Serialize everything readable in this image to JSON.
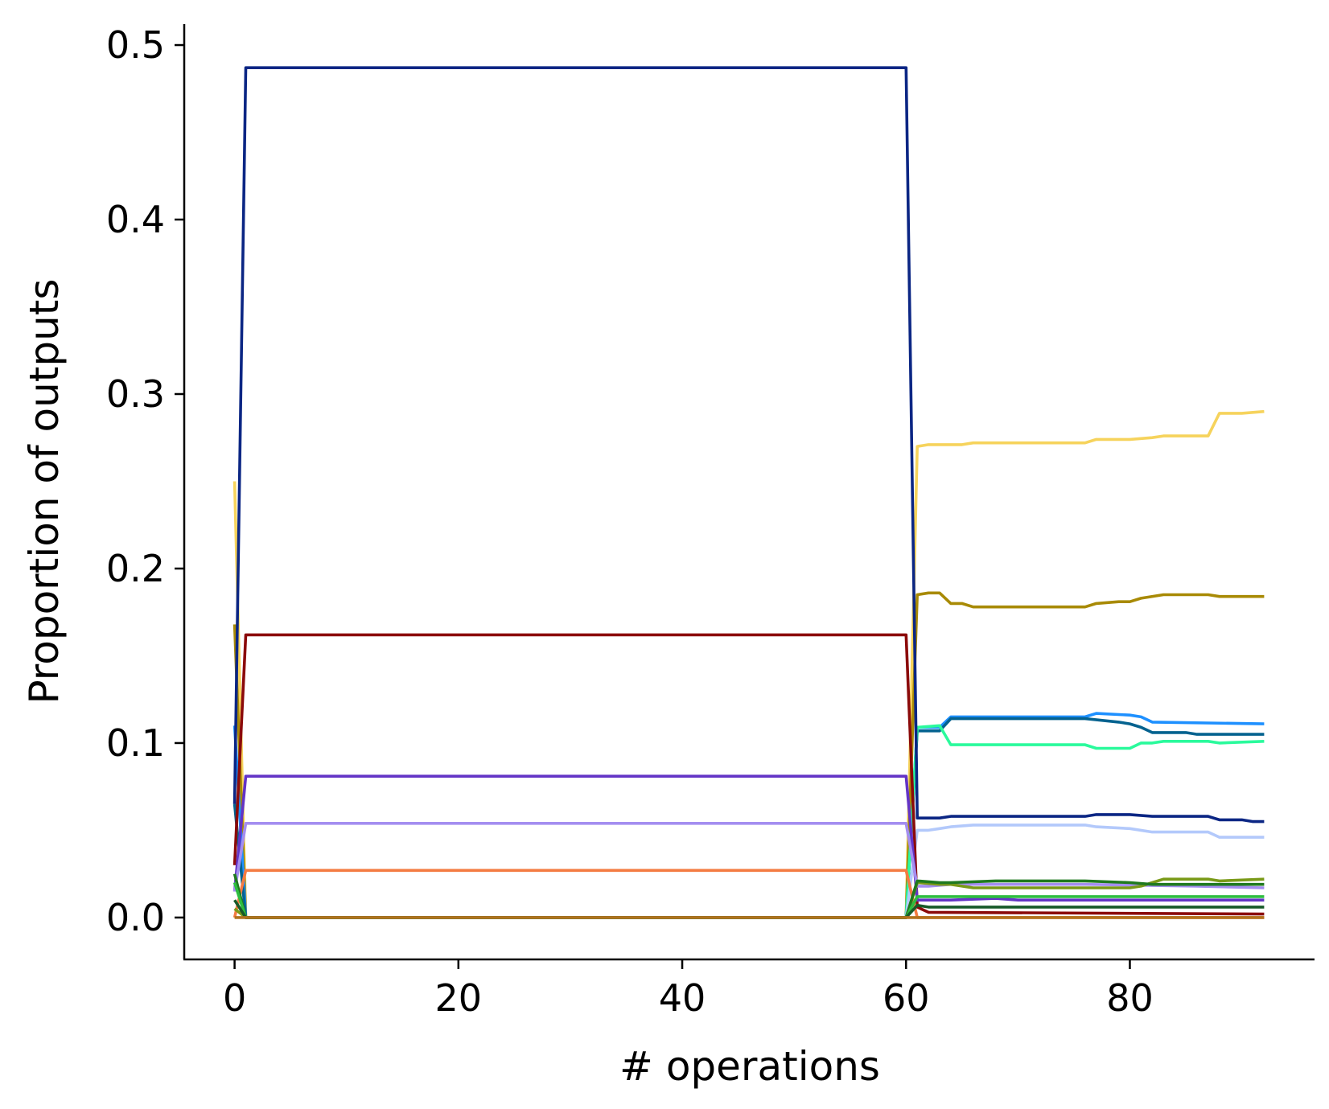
{
  "chart_data": {
    "type": "line",
    "title": "",
    "xlabel": "# operations",
    "ylabel": "Proportion of outputs",
    "xlim": [
      -4.5,
      96.5
    ],
    "ylim": [
      -0.024,
      0.512
    ],
    "xticks": [
      0,
      20,
      40,
      60,
      80
    ],
    "xtick_labels": [
      "0",
      "20",
      "40",
      "60",
      "80"
    ],
    "yticks": [
      0.0,
      0.1,
      0.2,
      0.3,
      0.4,
      0.5
    ],
    "ytick_labels": [
      "0.0",
      "0.1",
      "0.2",
      "0.3",
      "0.4",
      "0.5"
    ],
    "grid": false,
    "legend": "none",
    "series": [
      {
        "color": "#f6d35c",
        "x": [
          0,
          1,
          60,
          61,
          62,
          63,
          64,
          65,
          66,
          70,
          76,
          77,
          80,
          82,
          83,
          87,
          88,
          90,
          92
        ],
        "y": [
          0.25,
          0.0,
          0.0,
          0.27,
          0.271,
          0.271,
          0.271,
          0.271,
          0.272,
          0.272,
          0.272,
          0.274,
          0.274,
          0.275,
          0.276,
          0.276,
          0.289,
          0.289,
          0.29
        ]
      },
      {
        "color": "#a88a05",
        "x": [
          0,
          1,
          60,
          61,
          62,
          63,
          64,
          65,
          66,
          70,
          76,
          77,
          79,
          80,
          81,
          83,
          87,
          88,
          92
        ],
        "y": [
          0.168,
          0.0,
          0.0,
          0.185,
          0.186,
          0.186,
          0.18,
          0.18,
          0.178,
          0.178,
          0.178,
          0.18,
          0.181,
          0.181,
          0.183,
          0.185,
          0.185,
          0.184,
          0.184
        ]
      },
      {
        "color": "#1e90ff",
        "x": [
          0,
          1,
          60,
          61,
          63,
          64,
          67,
          76,
          77,
          80,
          81,
          82,
          92
        ],
        "y": [
          0.11,
          0.0,
          0.0,
          0.109,
          0.109,
          0.115,
          0.115,
          0.115,
          0.117,
          0.116,
          0.115,
          0.112,
          0.111
        ]
      },
      {
        "color": "#04628f",
        "x": [
          0,
          1,
          60,
          61,
          62,
          63,
          64,
          65,
          76,
          79,
          80,
          81,
          82,
          85,
          86,
          92
        ],
        "y": [
          0.065,
          0.0,
          0.0,
          0.107,
          0.107,
          0.107,
          0.114,
          0.114,
          0.114,
          0.112,
          0.111,
          0.109,
          0.106,
          0.106,
          0.105,
          0.105
        ]
      },
      {
        "color": "#2afa9c",
        "x": [
          0,
          1,
          60,
          61,
          63,
          64,
          66,
          76,
          77,
          80,
          81,
          82,
          83,
          87,
          88,
          92
        ],
        "y": [
          0.02,
          0.0,
          0.0,
          0.109,
          0.11,
          0.099,
          0.099,
          0.099,
          0.097,
          0.097,
          0.1,
          0.1,
          0.101,
          0.101,
          0.1,
          0.101
        ]
      },
      {
        "color": "#0b2684",
        "x": [
          0,
          1,
          60,
          61,
          62,
          63,
          64,
          66,
          68,
          76,
          77,
          80,
          82,
          87,
          88,
          90,
          91,
          92
        ],
        "y": [
          0.065,
          0.487,
          0.487,
          0.057,
          0.057,
          0.057,
          0.058,
          0.058,
          0.058,
          0.058,
          0.059,
          0.059,
          0.058,
          0.058,
          0.056,
          0.056,
          0.055,
          0.055
        ]
      },
      {
        "color": "#b3c9fb",
        "x": [
          0,
          1,
          60,
          61,
          62,
          63,
          64,
          66,
          76,
          77,
          80,
          82,
          87,
          88,
          92
        ],
        "y": [
          0.02,
          0.0,
          0.0,
          0.05,
          0.05,
          0.051,
          0.052,
          0.053,
          0.053,
          0.052,
          0.051,
          0.049,
          0.049,
          0.046,
          0.046
        ]
      },
      {
        "color": "#8b0a0a",
        "x": [
          0,
          1,
          60,
          61,
          62,
          92
        ],
        "y": [
          0.03,
          0.162,
          0.162,
          0.006,
          0.003,
          0.002
        ]
      },
      {
        "color": "#6334c6",
        "x": [
          0,
          1,
          60,
          61,
          62,
          64,
          68,
          70,
          76,
          92
        ],
        "y": [
          0.015,
          0.081,
          0.081,
          0.01,
          0.01,
          0.01,
          0.011,
          0.01,
          0.01,
          0.01
        ]
      },
      {
        "color": "#a48ef0",
        "x": [
          0,
          1,
          60,
          61,
          62,
          64,
          76,
          86,
          92
        ],
        "y": [
          0.015,
          0.054,
          0.054,
          0.018,
          0.018,
          0.019,
          0.019,
          0.018,
          0.017
        ]
      },
      {
        "color": "#f47b42",
        "x": [
          0,
          1,
          60,
          61,
          92
        ],
        "y": [
          0.0,
          0.027,
          0.027,
          0.0,
          0.0
        ]
      },
      {
        "color": "#7a9a18",
        "x": [
          0,
          1,
          60,
          61,
          63,
          64,
          66,
          76,
          80,
          81,
          82,
          83,
          87,
          88,
          92
        ],
        "y": [
          0.005,
          0.0,
          0.0,
          0.02,
          0.019,
          0.019,
          0.017,
          0.017,
          0.017,
          0.018,
          0.02,
          0.022,
          0.022,
          0.021,
          0.022
        ]
      },
      {
        "color": "#1f7a1f",
        "x": [
          0,
          1,
          60,
          61,
          63,
          64,
          68,
          76,
          80,
          82,
          92
        ],
        "y": [
          0.025,
          0.0,
          0.0,
          0.021,
          0.02,
          0.02,
          0.021,
          0.021,
          0.02,
          0.019,
          0.019
        ]
      },
      {
        "color": "#2ebd40",
        "x": [
          0,
          1,
          60,
          61,
          62,
          64,
          76,
          80,
          92
        ],
        "y": [
          0.02,
          0.0,
          0.0,
          0.012,
          0.012,
          0.012,
          0.012,
          0.012,
          0.012
        ]
      },
      {
        "color": "#185a2a",
        "x": [
          0,
          1,
          60,
          61,
          62,
          64,
          76,
          80,
          92
        ],
        "y": [
          0.01,
          0.0,
          0.0,
          0.007,
          0.006,
          0.006,
          0.006,
          0.006,
          0.006
        ]
      },
      {
        "color": "#b2721e",
        "x": [
          0,
          92
        ],
        "y": [
          0.0,
          0.0
        ]
      }
    ]
  }
}
